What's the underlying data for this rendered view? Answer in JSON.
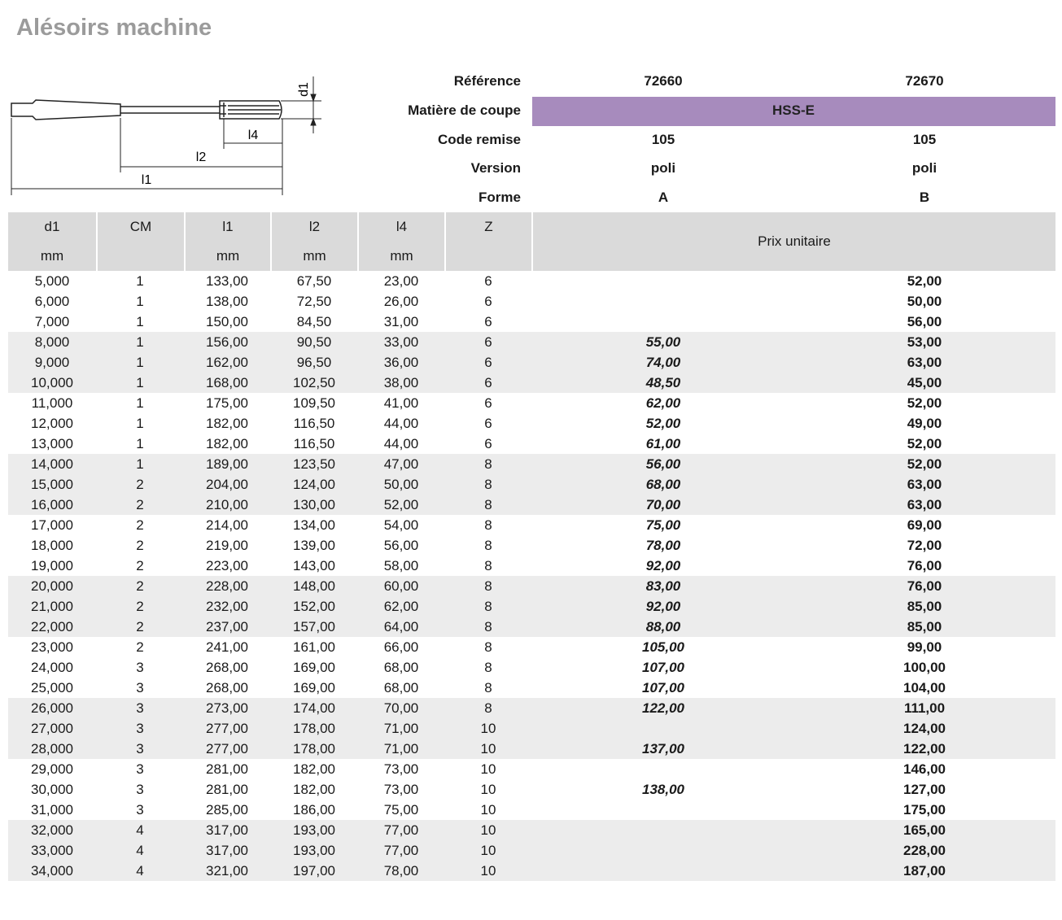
{
  "title": "Alésoirs machine",
  "drawing": {
    "labels": [
      "d1",
      "l4",
      "l2",
      "l1"
    ]
  },
  "specs": [
    {
      "label": "Référence",
      "values": [
        "72660",
        "72670"
      ]
    },
    {
      "label": "Matière de coupe",
      "values": [
        "HSS-E"
      ]
    },
    {
      "label": "Code remise",
      "values": [
        "105",
        "105"
      ]
    },
    {
      "label": "Version",
      "values": [
        "poli",
        "poli"
      ]
    },
    {
      "label": "Forme",
      "values": [
        "A",
        "B"
      ]
    }
  ],
  "table": {
    "columns": [
      {
        "name": "d1",
        "unit": "mm"
      },
      {
        "name": "CM"
      },
      {
        "name": "l1",
        "unit": "mm"
      },
      {
        "name": "l2",
        "unit": "mm"
      },
      {
        "name": "l4",
        "unit": "mm"
      },
      {
        "name": "Z"
      },
      {
        "name": "Prix unitaire"
      }
    ],
    "rows": [
      [
        "5,000",
        "1",
        "133,00",
        "67,50",
        "23,00",
        "6",
        null,
        "52,00"
      ],
      [
        "6,000",
        "1",
        "138,00",
        "72,50",
        "26,00",
        "6",
        null,
        "50,00"
      ],
      [
        "7,000",
        "1",
        "150,00",
        "84,50",
        "31,00",
        "6",
        null,
        "56,00"
      ],
      [
        "8,000",
        "1",
        "156,00",
        "90,50",
        "33,00",
        "6",
        "55,00",
        "53,00"
      ],
      [
        "9,000",
        "1",
        "162,00",
        "96,50",
        "36,00",
        "6",
        "74,00",
        "63,00"
      ],
      [
        "10,000",
        "1",
        "168,00",
        "102,50",
        "38,00",
        "6",
        "48,50",
        "45,00"
      ],
      [
        "11,000",
        "1",
        "175,00",
        "109,50",
        "41,00",
        "6",
        "62,00",
        "52,00"
      ],
      [
        "12,000",
        "1",
        "182,00",
        "116,50",
        "44,00",
        "6",
        "52,00",
        "49,00"
      ],
      [
        "13,000",
        "1",
        "182,00",
        "116,50",
        "44,00",
        "6",
        "61,00",
        "52,00"
      ],
      [
        "14,000",
        "1",
        "189,00",
        "123,50",
        "47,00",
        "8",
        "56,00",
        "52,00"
      ],
      [
        "15,000",
        "2",
        "204,00",
        "124,00",
        "50,00",
        "8",
        "68,00",
        "63,00"
      ],
      [
        "16,000",
        "2",
        "210,00",
        "130,00",
        "52,00",
        "8",
        "70,00",
        "63,00"
      ],
      [
        "17,000",
        "2",
        "214,00",
        "134,00",
        "54,00",
        "8",
        "75,00",
        "69,00"
      ],
      [
        "18,000",
        "2",
        "219,00",
        "139,00",
        "56,00",
        "8",
        "78,00",
        "72,00"
      ],
      [
        "19,000",
        "2",
        "223,00",
        "143,00",
        "58,00",
        "8",
        "92,00",
        "76,00"
      ],
      [
        "20,000",
        "2",
        "228,00",
        "148,00",
        "60,00",
        "8",
        "83,00",
        "76,00"
      ],
      [
        "21,000",
        "2",
        "232,00",
        "152,00",
        "62,00",
        "8",
        "92,00",
        "85,00"
      ],
      [
        "22,000",
        "2",
        "237,00",
        "157,00",
        "64,00",
        "8",
        "88,00",
        "85,00"
      ],
      [
        "23,000",
        "2",
        "241,00",
        "161,00",
        "66,00",
        "8",
        "105,00",
        "99,00"
      ],
      [
        "24,000",
        "3",
        "268,00",
        "169,00",
        "68,00",
        "8",
        "107,00",
        "100,00"
      ],
      [
        "25,000",
        "3",
        "268,00",
        "169,00",
        "68,00",
        "8",
        "107,00",
        "104,00"
      ],
      [
        "26,000",
        "3",
        "273,00",
        "174,00",
        "70,00",
        "8",
        "122,00",
        "111,00"
      ],
      [
        "27,000",
        "3",
        "277,00",
        "178,00",
        "71,00",
        "10",
        null,
        "124,00"
      ],
      [
        "28,000",
        "3",
        "277,00",
        "178,00",
        "71,00",
        "10",
        "137,00",
        "122,00"
      ],
      [
        "29,000",
        "3",
        "281,00",
        "182,00",
        "73,00",
        "10",
        null,
        "146,00"
      ],
      [
        "30,000",
        "3",
        "281,00",
        "182,00",
        "73,00",
        "10",
        "138,00",
        "127,00"
      ],
      [
        "31,000",
        "3",
        "285,00",
        "186,00",
        "75,00",
        "10",
        null,
        "175,00"
      ],
      [
        "32,000",
        "4",
        "317,00",
        "193,00",
        "77,00",
        "10",
        null,
        "165,00"
      ],
      [
        "33,000",
        "4",
        "317,00",
        "193,00",
        "77,00",
        "10",
        null,
        "228,00"
      ],
      [
        "34,000",
        "4",
        "321,00",
        "197,00",
        "78,00",
        "10",
        null,
        "187,00"
      ]
    ]
  }
}
